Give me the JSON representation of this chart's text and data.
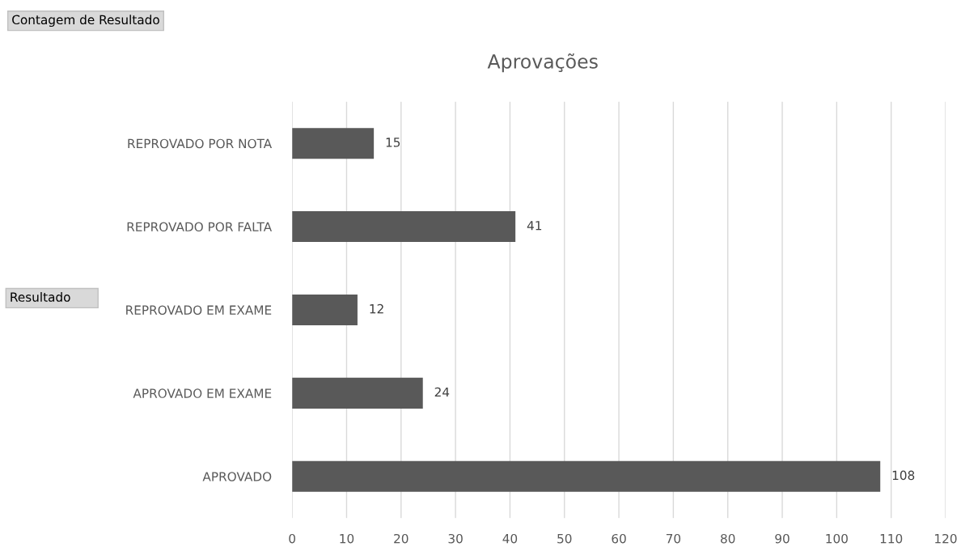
{
  "chart_data": {
    "type": "bar",
    "orientation": "horizontal",
    "title": "Aprovações",
    "categories": [
      "REPROVADO POR NOTA",
      "REPROVADO POR FALTA",
      "REPROVADO EM EXAME",
      "APROVADO EM EXAME",
      "APROVADO"
    ],
    "values": [
      15,
      41,
      12,
      24,
      108
    ],
    "color": "#595959",
    "xlim": [
      0,
      120
    ],
    "xticks": [
      0,
      10,
      20,
      30,
      40,
      50,
      60,
      70,
      80,
      90,
      100,
      110,
      120
    ],
    "grid": "x",
    "data_labels": true,
    "annotations": [
      "Contagem de Resultado",
      "Resultado"
    ]
  }
}
